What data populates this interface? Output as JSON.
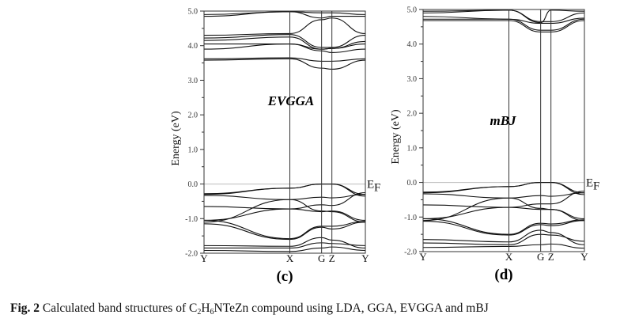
{
  "caption": {
    "label": "Fig. 2",
    "text_before": " Calculated band structures of C",
    "sub1": "2",
    "mid1": "H",
    "sub2": "6",
    "text_after": "NTeZn compound using LDA, GGA, EVGGA and mBJ"
  },
  "chart_data": [
    {
      "type": "line",
      "panel_label": "(c)",
      "method": "EVGGA",
      "ylabel": "Energy (eV)",
      "fermi_label": "E",
      "fermi_sub": "F",
      "ylim": [
        -2.0,
        5.0
      ],
      "yticks": [
        "5.0",
        "4.0",
        "3.0",
        "2.0",
        "1.0",
        "0.0",
        "-1.0",
        "-2.0"
      ],
      "kpoints": [
        "Y",
        "X",
        "G",
        "Z",
        "Y"
      ],
      "kpos": [
        0,
        1,
        1.37,
        1.49,
        1.88
      ],
      "bands": [
        [
          -0.28,
          -0.12,
          0.0,
          0.0,
          -0.3
        ],
        [
          -0.33,
          -0.45,
          -0.38,
          -0.4,
          -0.3
        ],
        [
          -0.3,
          -0.12,
          0.0,
          0.0,
          -0.35
        ],
        [
          -0.65,
          -0.72,
          -0.6,
          -0.62,
          -0.25
        ],
        [
          -1.05,
          -0.72,
          -0.8,
          -0.78,
          -1.05
        ],
        [
          -1.1,
          -0.45,
          -0.78,
          -0.8,
          -1.1
        ],
        [
          -1.05,
          -1.58,
          -1.22,
          -1.22,
          -1.08
        ],
        [
          -1.15,
          -1.6,
          -1.25,
          -1.3,
          -1.1
        ],
        [
          -1.78,
          -1.8,
          -1.55,
          -1.62,
          -1.85
        ],
        [
          -1.85,
          -1.85,
          -1.7,
          -1.72,
          -1.78
        ],
        [
          -1.92,
          -1.95,
          -1.85,
          -1.82,
          -1.92
        ],
        [
          3.58,
          3.62,
          3.35,
          3.32,
          3.58
        ],
        [
          3.62,
          3.65,
          3.55,
          3.55,
          3.62
        ],
        [
          3.9,
          4.05,
          3.85,
          3.8,
          3.9
        ],
        [
          4.05,
          4.05,
          3.9,
          3.92,
          4.05
        ],
        [
          4.15,
          4.25,
          3.9,
          3.92,
          4.12
        ],
        [
          4.22,
          4.32,
          3.95,
          3.95,
          4.3
        ],
        [
          4.3,
          4.35,
          4.75,
          4.8,
          4.35
        ],
        [
          4.85,
          4.98,
          4.8,
          4.85,
          4.85
        ],
        [
          4.9,
          4.98,
          4.95,
          4.95,
          4.9
        ]
      ]
    },
    {
      "type": "line",
      "panel_label": "(d)",
      "method": "mBJ",
      "ylabel": "Energy (eV)",
      "fermi_label": "E",
      "fermi_sub": "F",
      "ylim": [
        -2.0,
        5.0
      ],
      "yticks": [
        "5.0",
        "4.0",
        "3.0",
        "2.0",
        "1.0",
        "0.0",
        "-1.0",
        "-2.0"
      ],
      "kpoints": [
        "Y",
        "X",
        "G",
        "Z",
        "Y"
      ],
      "kpos": [
        0,
        1,
        1.37,
        1.49,
        1.88
      ],
      "bands": [
        [
          -0.28,
          -0.12,
          0.0,
          0.0,
          -0.3
        ],
        [
          -0.33,
          -0.45,
          -0.38,
          -0.4,
          -0.3
        ],
        [
          -0.3,
          -0.12,
          0.0,
          0.0,
          -0.35
        ],
        [
          -0.65,
          -0.72,
          -0.62,
          -0.62,
          -0.25
        ],
        [
          -1.05,
          -0.72,
          -0.78,
          -0.78,
          -1.05
        ],
        [
          -1.1,
          -0.45,
          -0.75,
          -0.78,
          -1.1
        ],
        [
          -1.05,
          -1.5,
          -1.18,
          -1.2,
          -1.08
        ],
        [
          -1.12,
          -1.52,
          -1.22,
          -1.25,
          -1.1
        ],
        [
          -1.65,
          -1.72,
          -1.38,
          -1.45,
          -1.8
        ],
        [
          -1.75,
          -1.8,
          -1.5,
          -1.52,
          -1.7
        ],
        [
          -1.88,
          -1.85,
          -1.8,
          -1.78,
          -1.9
        ],
        [
          4.68,
          4.68,
          4.35,
          4.35,
          4.68
        ],
        [
          4.72,
          4.72,
          4.4,
          4.4,
          4.72
        ],
        [
          4.8,
          4.72,
          4.6,
          4.6,
          4.75
        ],
        [
          4.9,
          4.98,
          4.65,
          4.65,
          4.9
        ],
        [
          4.95,
          4.98,
          4.62,
          4.98,
          4.95
        ]
      ]
    }
  ]
}
